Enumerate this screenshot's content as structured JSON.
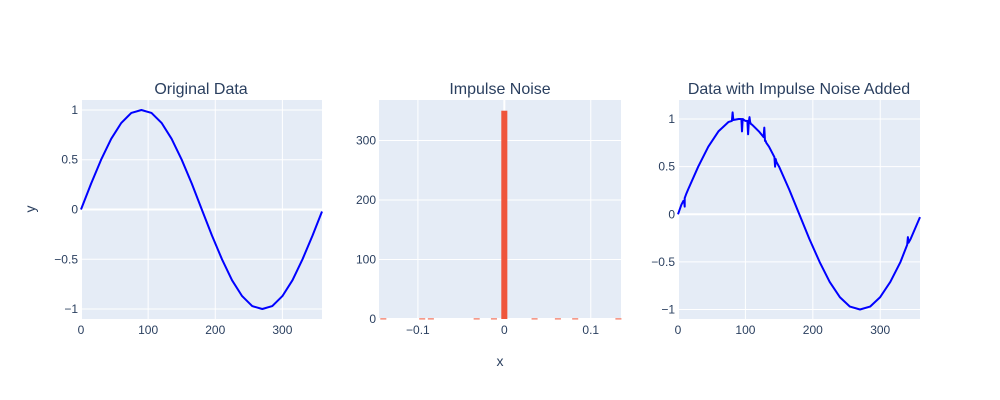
{
  "colors": {
    "plot_bg": "#e5ecf6",
    "grid": "#ffffff",
    "text": "#2a3f5f",
    "line": "#0000ff",
    "bar": "#ef553b"
  },
  "chart_data": [
    {
      "type": "line",
      "title": "Original Data",
      "xlabel": "",
      "ylabel": "y",
      "xlim": [
        0,
        359
      ],
      "ylim": [
        -1.1,
        1.1
      ],
      "xticks": [
        0,
        100,
        200,
        300
      ],
      "xtick_labels": [
        "0",
        "100",
        "200",
        "300"
      ],
      "yticks": [
        -1,
        -0.5,
        0,
        0.5,
        1
      ],
      "ytick_labels": [
        "−1",
        "−0.5",
        "0",
        "0.5",
        "1"
      ],
      "grid": true,
      "series": [
        {
          "color": "#0000ff",
          "x": [
            0,
            15,
            30,
            45,
            60,
            75,
            90,
            105,
            120,
            135,
            150,
            165,
            180,
            195,
            210,
            225,
            240,
            255,
            270,
            285,
            300,
            315,
            330,
            345,
            359
          ],
          "y": [
            0,
            0.26,
            0.5,
            0.71,
            0.87,
            0.97,
            1,
            0.97,
            0.87,
            0.71,
            0.5,
            0.26,
            0,
            -0.26,
            -0.5,
            -0.71,
            -0.87,
            -0.97,
            -1,
            -0.97,
            -0.87,
            -0.71,
            -0.5,
            -0.26,
            -0.02
          ]
        }
      ]
    },
    {
      "type": "bar",
      "title": "Impulse Noise",
      "xlabel": "x",
      "ylabel": "",
      "xlim": [
        -0.145,
        0.135
      ],
      "ylim": [
        0,
        368
      ],
      "xticks": [
        -0.1,
        0,
        0.1
      ],
      "xtick_labels": [
        "−0.1",
        "0",
        "0.1"
      ],
      "yticks": [
        0,
        100,
        200,
        300
      ],
      "ytick_labels": [
        "0",
        "100",
        "200",
        "300"
      ],
      "grid": true,
      "bar_width": 0.007,
      "x": [
        -0.14,
        -0.095,
        -0.085,
        -0.032,
        -0.012,
        0,
        0.035,
        0.062,
        0.082,
        0.132
      ],
      "values": [
        1,
        1,
        1,
        1,
        1,
        350,
        1,
        1,
        1,
        1
      ]
    },
    {
      "type": "line",
      "title": "Data with Impulse Noise Added",
      "xlabel": "",
      "ylabel": "",
      "xlim": [
        0,
        359
      ],
      "ylim": [
        -1.1,
        1.2
      ],
      "xticks": [
        0,
        100,
        200,
        300
      ],
      "xtick_labels": [
        "0",
        "100",
        "200",
        "300"
      ],
      "yticks": [
        -1,
        -0.5,
        0,
        0.5,
        1
      ],
      "ytick_labels": [
        "−1",
        "−0.5",
        "0",
        "0.5",
        "1"
      ],
      "grid": true,
      "series": [
        {
          "color": "#0000ff",
          "x": [
            0,
            5,
            8,
            9,
            10,
            10,
            11,
            12,
            15,
            30,
            45,
            60,
            75,
            80,
            81,
            82,
            90,
            94,
            95,
            96,
            100,
            103,
            104,
            105,
            106,
            107,
            108,
            110,
            120,
            127,
            128,
            129,
            130,
            131,
            135,
            143,
            144,
            145,
            146,
            150,
            165,
            180,
            195,
            210,
            225,
            240,
            255,
            270,
            285,
            300,
            315,
            330,
            340,
            341,
            342,
            345,
            359
          ],
          "y": [
            0,
            0.1,
            0.14,
            0.14,
            0.08,
            0.17,
            0.19,
            0.21,
            0.26,
            0.5,
            0.71,
            0.87,
            0.97,
            0.98,
            1.07,
            0.99,
            1,
            1,
            0.87,
            1,
            0.98,
            0.98,
            0.84,
            0.97,
            1.02,
            0.97,
            0.95,
            0.94,
            0.87,
            0.81,
            0.91,
            0.77,
            0.77,
            0.75,
            0.71,
            0.6,
            0.5,
            0.58,
            0.55,
            0.5,
            0.26,
            0,
            -0.26,
            -0.5,
            -0.71,
            -0.87,
            -0.97,
            -1,
            -0.97,
            -0.87,
            -0.71,
            -0.5,
            -0.32,
            -0.24,
            -0.3,
            -0.26,
            -0.03
          ]
        }
      ]
    }
  ]
}
